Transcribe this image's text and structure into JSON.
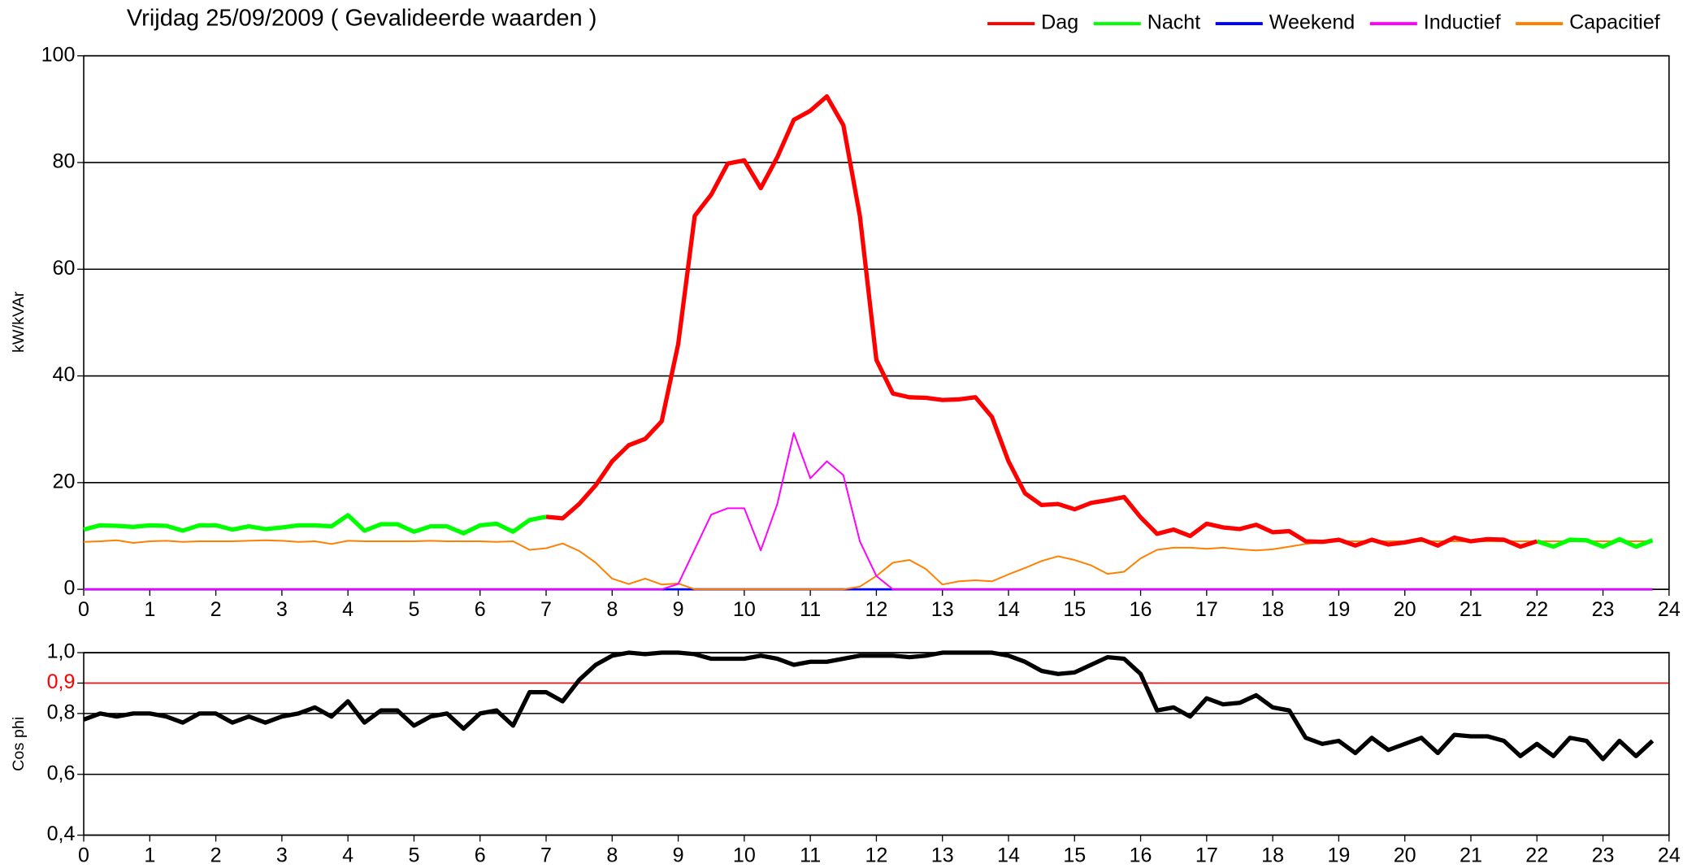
{
  "chart_data": [
    {
      "type": "line",
      "title": "Vrijdag 25/09/2009 ( Gevalideerde waarden )",
      "y_label": "kW/kVAr",
      "x": [
        0,
        0.25,
        0.5,
        0.75,
        1,
        1.25,
        1.5,
        1.75,
        2,
        2.25,
        2.5,
        2.75,
        3,
        3.25,
        3.5,
        3.75,
        4,
        4.25,
        4.5,
        4.75,
        5,
        5.25,
        5.5,
        5.75,
        6,
        6.25,
        6.5,
        6.75,
        7,
        7.25,
        7.5,
        7.75,
        8,
        8.25,
        8.5,
        8.75,
        9,
        9.25,
        9.5,
        9.75,
        10,
        10.25,
        10.5,
        10.75,
        11,
        11.25,
        11.5,
        11.75,
        12,
        12.25,
        12.5,
        12.75,
        13,
        13.25,
        13.5,
        13.75,
        14,
        14.25,
        14.5,
        14.75,
        15,
        15.25,
        15.5,
        15.75,
        16,
        16.25,
        16.5,
        16.75,
        17,
        17.25,
        17.5,
        17.75,
        18,
        18.25,
        18.5,
        18.75,
        19,
        19.25,
        19.5,
        19.75,
        20,
        20.25,
        20.5,
        20.75,
        21,
        21.25,
        21.5,
        21.75,
        22,
        22.25,
        22.5,
        22.75,
        23,
        23.25,
        23.5,
        23.75
      ],
      "xlim": [
        0,
        24
      ],
      "xticks": [
        0,
        1,
        2,
        3,
        4,
        5,
        6,
        7,
        8,
        9,
        10,
        11,
        12,
        13,
        14,
        15,
        16,
        17,
        18,
        19,
        20,
        21,
        22,
        23,
        24
      ],
      "ylim": [
        0,
        100
      ],
      "yticks": [
        0,
        20,
        40,
        60,
        80,
        100
      ],
      "grid": true,
      "legend": "top-right",
      "series": [
        {
          "name": "Weekend",
          "color": "#0000ff",
          "values": [
            0,
            0,
            0,
            0,
            0,
            0,
            0,
            0,
            0,
            0,
            0,
            0,
            0,
            0,
            0,
            0,
            0,
            0,
            0,
            0,
            0,
            0,
            0,
            0,
            0,
            0,
            0,
            0,
            0,
            0,
            0,
            0,
            0,
            0,
            0,
            0,
            0,
            0,
            0,
            0,
            0,
            0,
            0,
            0,
            0,
            0,
            0,
            0,
            0,
            0,
            0,
            0,
            0,
            0,
            0,
            0,
            0,
            0,
            0,
            0,
            0,
            0,
            0,
            0,
            0,
            0,
            0,
            0,
            0,
            0,
            0,
            0,
            0,
            0,
            0,
            0,
            0,
            0,
            0,
            0,
            0,
            0,
            0,
            0,
            0,
            0,
            0,
            0,
            0,
            0,
            0,
            0,
            0,
            0,
            0,
            0
          ]
        },
        {
          "name": "Capacitief",
          "color": "#ff8000",
          "values": [
            8.9,
            9,
            9.2,
            8.7,
            9,
            9.1,
            8.9,
            9,
            9,
            9,
            9.1,
            9.2,
            9.1,
            8.9,
            9,
            8.5,
            9.1,
            9,
            9,
            9,
            9,
            9.1,
            9,
            9,
            9,
            8.9,
            9,
            7.4,
            7.7,
            8.6,
            7.2,
            5,
            2,
            1,
            2,
            0.9,
            1.1,
            0,
            0,
            0,
            0,
            0,
            0,
            0,
            0,
            0,
            0,
            0.5,
            2.5,
            5,
            5.5,
            3.8,
            0.9,
            1.5,
            1.7,
            1.5,
            2.8,
            4,
            5.3,
            6.2,
            5.5,
            4.5,
            2.9,
            3.3,
            5.8,
            7.4,
            7.8,
            7.8,
            7.6,
            7.8,
            7.5,
            7.3,
            7.5,
            8,
            8.5,
            8.8,
            9,
            9,
            9,
            9,
            9,
            9,
            9,
            9,
            9,
            9,
            9,
            9,
            9,
            9,
            9,
            9,
            9,
            9,
            9,
            9
          ]
        },
        {
          "name": "Inductief",
          "color": "#ff00ff",
          "values": [
            0,
            0,
            0,
            0,
            0,
            0,
            0,
            0,
            0,
            0,
            0,
            0,
            0,
            0,
            0,
            0,
            0,
            0,
            0,
            0,
            0,
            0,
            0,
            0,
            0,
            0,
            0,
            0,
            0,
            0,
            0,
            0,
            0,
            0,
            0,
            0,
            1,
            7.5,
            14,
            15.2,
            15.2,
            7.3,
            16,
            29.3,
            20.8,
            24,
            21.4,
            9,
            2.5,
            0,
            0,
            0,
            0,
            0,
            0,
            0,
            0,
            0,
            0,
            0,
            0,
            0,
            0,
            0,
            0,
            0,
            0,
            0,
            0,
            0,
            0,
            0,
            0,
            0,
            0,
            0,
            0,
            0,
            0,
            0,
            0,
            0,
            0,
            0,
            0,
            0,
            0,
            0,
            0,
            0,
            0,
            0,
            0,
            0,
            0,
            0
          ]
        },
        {
          "name": "Nacht",
          "color": "#00ff00",
          "values": [
            11.2,
            12,
            11.9,
            11.7,
            12,
            11.9,
            11,
            12,
            12,
            11.2,
            11.8,
            11.3,
            11.6,
            12,
            12,
            11.8,
            13.9,
            11,
            12.2,
            12.2,
            10.8,
            11.8,
            11.8,
            10.5,
            12,
            12.3,
            10.8,
            13,
            13.6,
            null,
            null,
            null,
            null,
            null,
            null,
            null,
            null,
            null,
            null,
            null,
            null,
            null,
            null,
            null,
            null,
            null,
            null,
            null,
            null,
            null,
            null,
            null,
            null,
            null,
            null,
            null,
            null,
            null,
            null,
            null,
            null,
            null,
            null,
            null,
            null,
            null,
            null,
            null,
            null,
            null,
            null,
            null,
            null,
            null,
            null,
            null,
            null,
            null,
            null,
            null,
            null,
            null,
            null,
            null,
            null,
            null,
            null,
            null,
            9,
            8,
            9.3,
            9.2,
            8,
            9.4,
            8,
            9.2
          ]
        },
        {
          "name": "Dag",
          "color": "#ff0000",
          "values": [
            null,
            null,
            null,
            null,
            null,
            null,
            null,
            null,
            null,
            null,
            null,
            null,
            null,
            null,
            null,
            null,
            null,
            null,
            null,
            null,
            null,
            null,
            null,
            null,
            null,
            null,
            null,
            null,
            13.6,
            13.3,
            16,
            19.5,
            24,
            27,
            28.2,
            31.5,
            46,
            70,
            74,
            79.8,
            80.4,
            75.2,
            81,
            88,
            89.7,
            92.4,
            87,
            70,
            43,
            36.7,
            36,
            35.9,
            35.5,
            35.6,
            36,
            32.3,
            24,
            18,
            15.8,
            16,
            15,
            16.2,
            16.7,
            17.3,
            13.5,
            10.4,
            11.2,
            10,
            12.3,
            11.6,
            11.3,
            12.1,
            10.7,
            10.9,
            9,
            8.9,
            9.3,
            8.2,
            9.3,
            8.4,
            8.8,
            9.4,
            8.2,
            9.7,
            9,
            9.4,
            9.3,
            8,
            9,
            null,
            null,
            null,
            null,
            null,
            null,
            null
          ]
        }
      ],
      "legend_order": [
        "Dag",
        "Nacht",
        "Weekend",
        "Inductief",
        "Capacitief"
      ]
    },
    {
      "type": "line",
      "y_label": "Cos phi",
      "x": [
        0,
        0.25,
        0.5,
        0.75,
        1,
        1.25,
        1.5,
        1.75,
        2,
        2.25,
        2.5,
        2.75,
        3,
        3.25,
        3.5,
        3.75,
        4,
        4.25,
        4.5,
        4.75,
        5,
        5.25,
        5.5,
        5.75,
        6,
        6.25,
        6.5,
        6.75,
        7,
        7.25,
        7.5,
        7.75,
        8,
        8.25,
        8.5,
        8.75,
        9,
        9.25,
        9.5,
        9.75,
        10,
        10.25,
        10.5,
        10.75,
        11,
        11.25,
        11.5,
        11.75,
        12,
        12.25,
        12.5,
        12.75,
        13,
        13.25,
        13.5,
        13.75,
        14,
        14.25,
        14.5,
        14.75,
        15,
        15.25,
        15.5,
        15.75,
        16,
        16.25,
        16.5,
        16.75,
        17,
        17.25,
        17.5,
        17.75,
        18,
        18.25,
        18.5,
        18.75,
        19,
        19.25,
        19.5,
        19.75,
        20,
        20.25,
        20.5,
        20.75,
        21,
        21.25,
        21.5,
        21.75,
        22,
        22.25,
        22.5,
        22.75,
        23,
        23.25,
        23.5,
        23.75
      ],
      "xlim": [
        0,
        24
      ],
      "xticks": [
        0,
        1,
        2,
        3,
        4,
        5,
        6,
        7,
        8,
        9,
        10,
        11,
        12,
        13,
        14,
        15,
        16,
        17,
        18,
        19,
        20,
        21,
        22,
        23,
        24
      ],
      "ylim": [
        0.4,
        1.0
      ],
      "yticks": [
        {
          "value": 0.4,
          "label": "0,4"
        },
        {
          "value": 0.6,
          "label": "0,6"
        },
        {
          "value": 0.8,
          "label": "0,8"
        },
        {
          "value": 0.9,
          "label": "0,9",
          "color": "#ff0000"
        },
        {
          "value": 1.0,
          "label": "1,0"
        }
      ],
      "grid": true,
      "series": [
        {
          "color": "#000000",
          "values": [
            0.78,
            0.8,
            0.79,
            0.8,
            0.8,
            0.79,
            0.77,
            0.8,
            0.8,
            0.77,
            0.79,
            0.77,
            0.79,
            0.8,
            0.82,
            0.79,
            0.84,
            0.77,
            0.81,
            0.81,
            0.76,
            0.79,
            0.8,
            0.75,
            0.8,
            0.81,
            0.76,
            0.87,
            0.87,
            0.84,
            0.91,
            0.96,
            0.99,
            1.0,
            0.995,
            1.0,
            1.0,
            0.995,
            0.98,
            0.98,
            0.98,
            0.99,
            0.98,
            0.96,
            0.97,
            0.97,
            0.98,
            0.99,
            0.99,
            0.99,
            0.985,
            0.99,
            1.0,
            1.0,
            1.0,
            1.0,
            0.99,
            0.97,
            0.94,
            0.93,
            0.935,
            0.96,
            0.985,
            0.98,
            0.93,
            0.81,
            0.82,
            0.79,
            0.85,
            0.83,
            0.835,
            0.86,
            0.82,
            0.81,
            0.72,
            0.7,
            0.71,
            0.67,
            0.72,
            0.68,
            0.7,
            0.72,
            0.67,
            0.73,
            0.725,
            0.725,
            0.71,
            0.66,
            0.7,
            0.66,
            0.72,
            0.71,
            0.65,
            0.71,
            0.66,
            0.71
          ]
        }
      ]
    }
  ]
}
